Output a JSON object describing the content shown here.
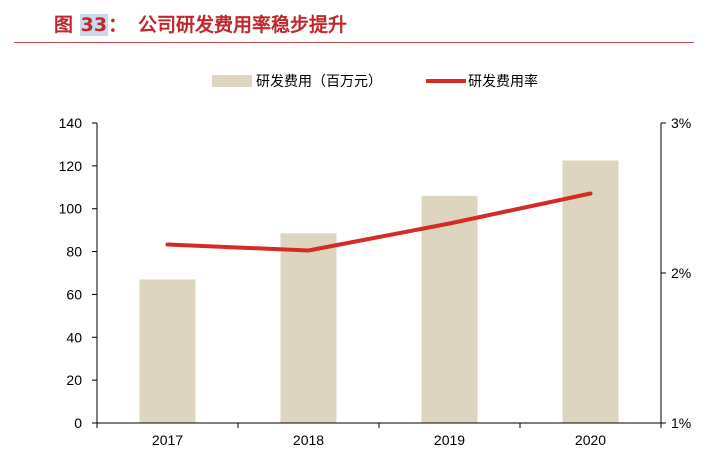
{
  "figure": {
    "label_prefix": "图",
    "label_number": "33",
    "label_suffix": "：",
    "title": "公司研发费用率稳步提升"
  },
  "chart_data": {
    "type": "bar",
    "categories": [
      "2017",
      "2018",
      "2019",
      "2020"
    ],
    "series": [
      {
        "name": "研发费用（百万元）",
        "type": "bar",
        "axis": "left",
        "color": "#ddd5bf",
        "values": [
          67,
          88.5,
          106,
          122.5
        ]
      },
      {
        "name": "研发费用率",
        "type": "line",
        "axis": "right",
        "color": "#d42b25",
        "values": [
          0.0219,
          0.0215,
          0.0233,
          0.0253
        ]
      }
    ],
    "y_left": {
      "min": 0,
      "max": 140,
      "ticks": [
        "0",
        "20",
        "40",
        "60",
        "80",
        "100",
        "120",
        "140"
      ]
    },
    "y_right": {
      "min": 0.01,
      "max": 0.03,
      "ticks": [
        "1%",
        "2%",
        "3%"
      ]
    },
    "legend_position": "top-center",
    "grid": false
  }
}
